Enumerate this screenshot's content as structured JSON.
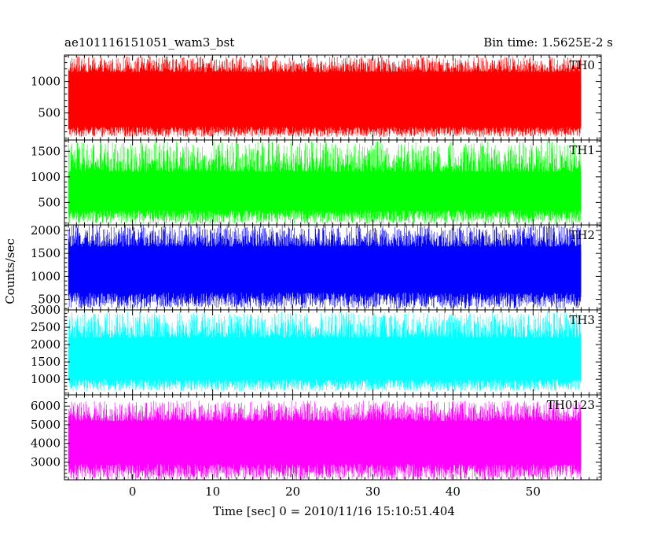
{
  "chart_data": {
    "type": "line",
    "title_left": "ae101116151051_wam3_bst",
    "title_right": "Bin time: 1.5625E-2 s",
    "xlabel": "Time [sec] 0 = 2010/11/16 15:10:51.404",
    "ylabel": "Counts/sec",
    "x": {
      "range": [
        -8.5,
        58.5
      ],
      "ticks": [
        0,
        10,
        20,
        30,
        40,
        50
      ],
      "data_range": [
        -8,
        56
      ]
    },
    "panels": [
      {
        "name": "TH0",
        "color": "#ff0000",
        "ylim": [
          70,
          1420
        ],
        "yticks": [
          500,
          1000
        ],
        "band_low": [
          120,
          280
        ],
        "band_high": [
          1150,
          1400
        ],
        "core": [
          300,
          1000
        ]
      },
      {
        "name": "TH1",
        "color": "#00ff00",
        "ylim": [
          60,
          1720
        ],
        "yticks": [
          500,
          1000,
          1500
        ],
        "band_low": [
          80,
          350
        ],
        "band_high": [
          1100,
          1700
        ],
        "core": [
          350,
          1050
        ]
      },
      {
        "name": "TH2",
        "color": "#0000ff",
        "ylim": [
          270,
          2120
        ],
        "yticks": [
          500,
          1000,
          1500,
          2000
        ],
        "band_low": [
          300,
          650
        ],
        "band_high": [
          1650,
          2120
        ],
        "core": [
          650,
          1550
        ]
      },
      {
        "name": "TH3",
        "color": "#00ffff",
        "ylim": [
          550,
          3000
        ],
        "yticks": [
          1000,
          1500,
          2000,
          2500,
          3000
        ],
        "band_low": [
          650,
          1000
        ],
        "band_high": [
          2200,
          2950
        ],
        "core": [
          1000,
          2050
        ]
      },
      {
        "name": "TH0123",
        "color": "#ff00ff",
        "ylim": [
          2050,
          6600
        ],
        "yticks": [
          3000,
          4000,
          5000,
          6000
        ],
        "band_low": [
          2050,
          2900
        ],
        "band_high": [
          5200,
          6300
        ],
        "core": [
          2900,
          5100
        ]
      }
    ]
  }
}
